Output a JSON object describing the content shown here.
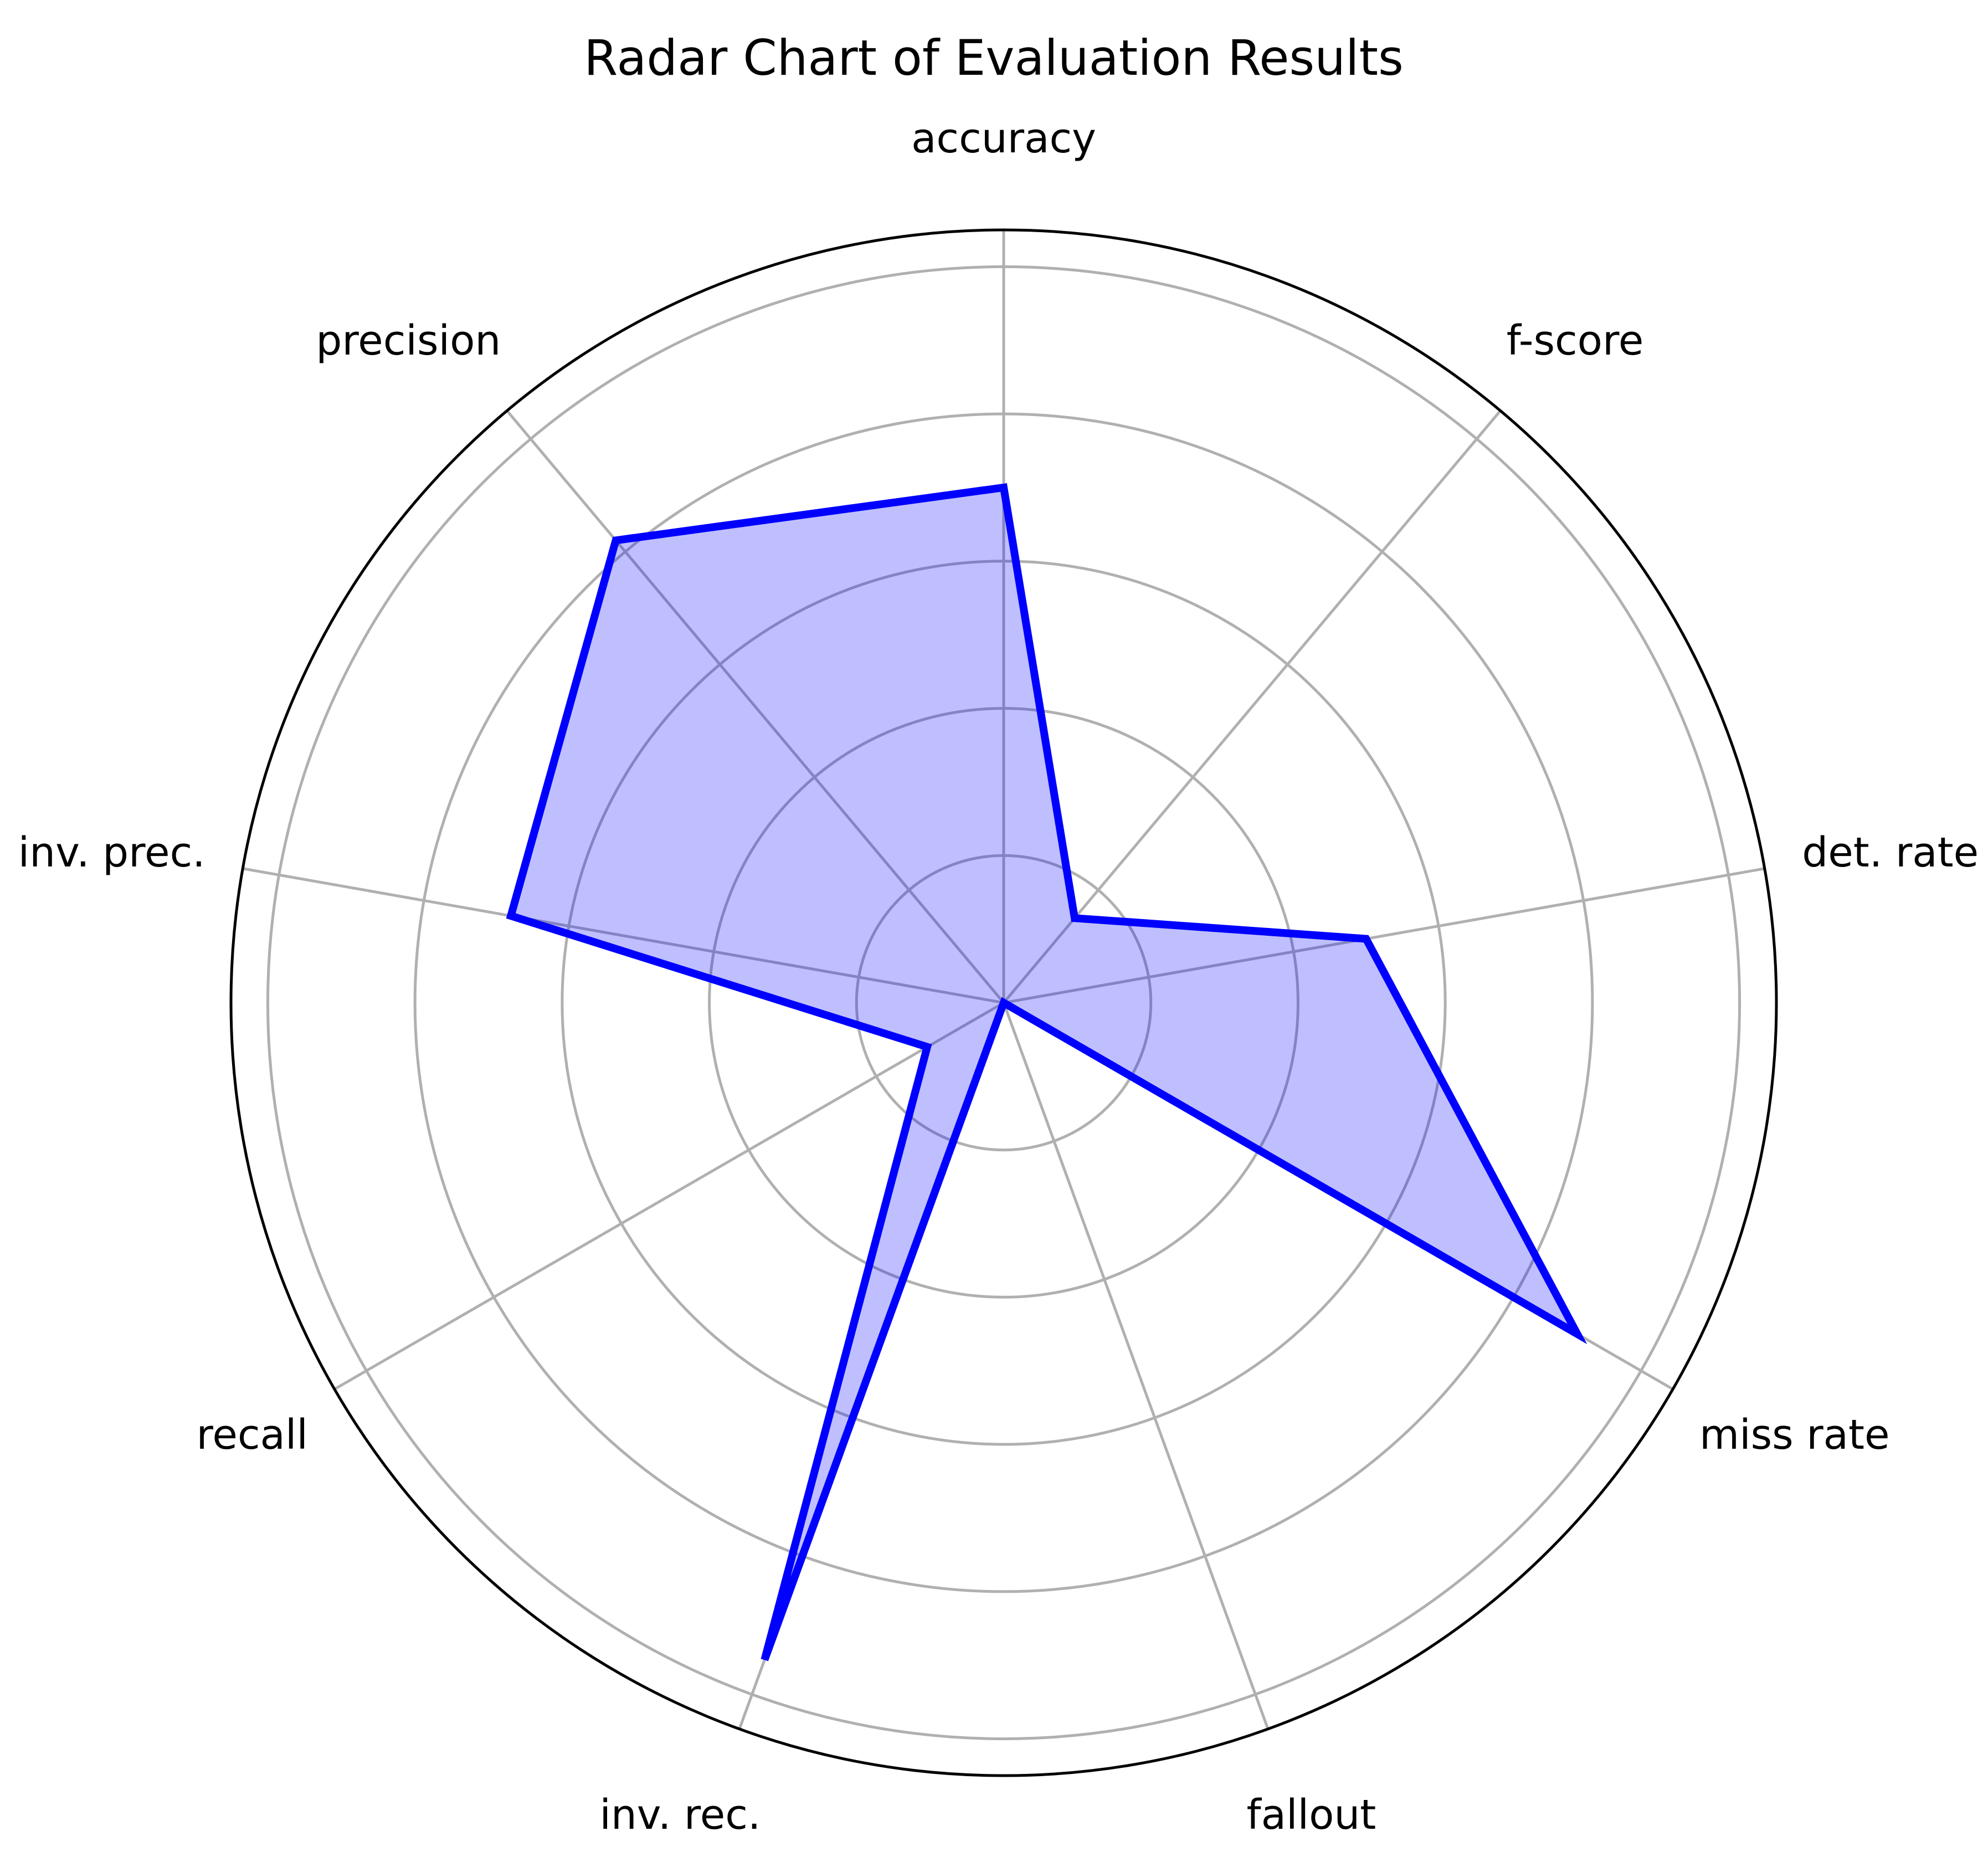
{
  "chart_data": {
    "type": "radar",
    "title": "Radar Chart of Evaluation Results",
    "categories": [
      "accuracy",
      "f-score",
      "det. rate",
      "miss rate",
      "fallout",
      "inv. rec.",
      "recall",
      "inv. prec.",
      "precision"
    ],
    "series": [
      {
        "values": [
          0.7,
          0.15,
          0.5,
          0.9,
          0.0,
          0.95,
          0.12,
          0.68,
          0.82
        ],
        "line_color": "#0000ff",
        "fill_color": "#0000ff",
        "fill_opacity": 0.25
      }
    ],
    "rlim": [
      0,
      1.05
    ],
    "rings": [
      0.2,
      0.4,
      0.6,
      0.8,
      1.0
    ],
    "grid": true,
    "start_angle_deg": 90,
    "direction": "clockwise",
    "grid_color": "#b0b0b0"
  }
}
